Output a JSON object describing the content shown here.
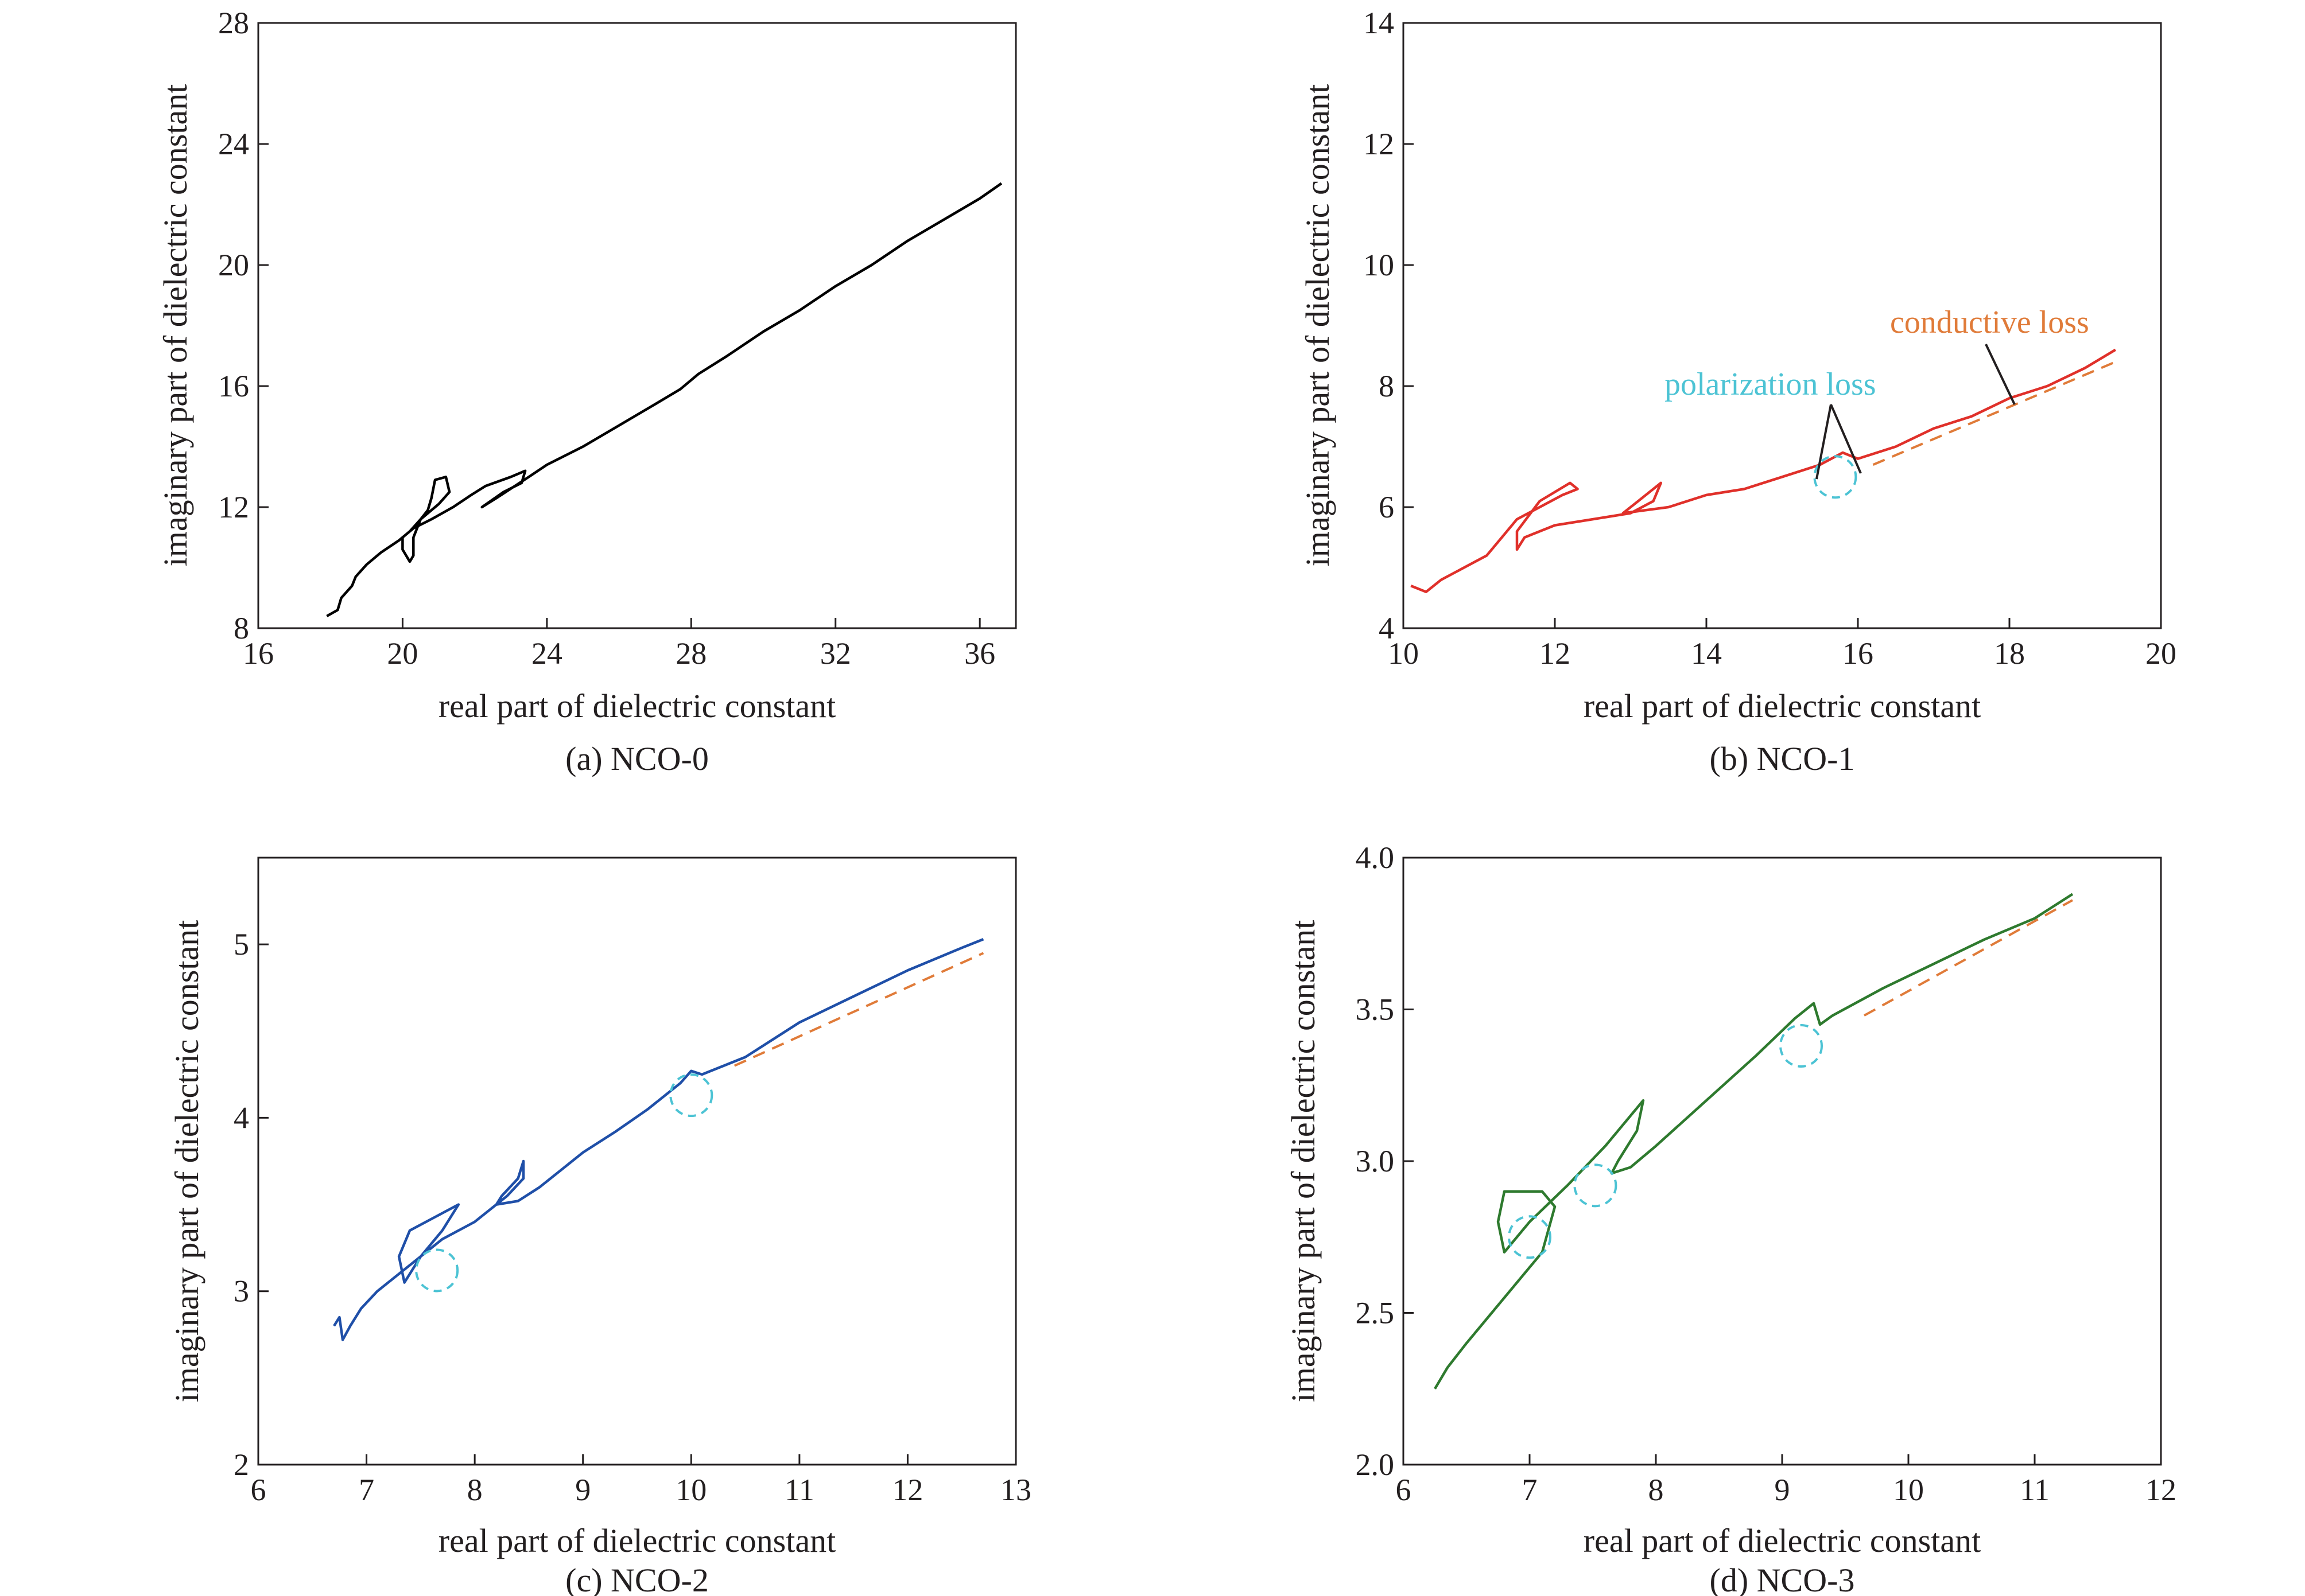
{
  "chart_data": [
    {
      "type": "line",
      "caption": "(a) NCO-0",
      "xlabel": "real part of dielectric constant",
      "ylabel": "imaginary part of dielectric constant",
      "xlim": [
        16,
        37
      ],
      "ylim": [
        8,
        28
      ],
      "xticks": [
        16,
        20,
        24,
        28,
        32,
        36
      ],
      "yticks": [
        8,
        12,
        16,
        20,
        24,
        28
      ],
      "grid": false,
      "series": [
        {
          "color": "#000000",
          "style": "solid",
          "points": [
            [
              17.9,
              8.4
            ],
            [
              18.2,
              8.6
            ],
            [
              18.3,
              9.0
            ],
            [
              18.6,
              9.4
            ],
            [
              18.7,
              9.7
            ],
            [
              19.0,
              10.1
            ],
            [
              19.4,
              10.5
            ],
            [
              19.9,
              10.9
            ],
            [
              20.2,
              11.2
            ],
            [
              20.5,
              11.6
            ],
            [
              20.7,
              11.9
            ],
            [
              20.8,
              12.3
            ],
            [
              20.9,
              12.9
            ],
            [
              21.2,
              13.0
            ],
            [
              21.3,
              12.5
            ],
            [
              21.0,
              12.1
            ],
            [
              20.5,
              11.6
            ],
            [
              20.3,
              11.0
            ],
            [
              20.3,
              10.4
            ],
            [
              20.2,
              10.2
            ],
            [
              20.0,
              10.6
            ],
            [
              20.0,
              11.0
            ],
            [
              20.3,
              11.3
            ],
            [
              20.8,
              11.6
            ],
            [
              21.4,
              12.0
            ],
            [
              21.9,
              12.4
            ],
            [
              22.3,
              12.7
            ],
            [
              23.0,
              13.0
            ],
            [
              23.4,
              13.2
            ],
            [
              23.3,
              12.8
            ],
            [
              22.8,
              12.5
            ],
            [
              22.2,
              12.0
            ],
            [
              22.6,
              12.3
            ],
            [
              23.5,
              13.0
            ],
            [
              24.0,
              13.4
            ],
            [
              25.0,
              14.0
            ],
            [
              26.0,
              14.7
            ],
            [
              27.0,
              15.4
            ],
            [
              27.7,
              15.9
            ],
            [
              28.2,
              16.4
            ],
            [
              29.0,
              17.0
            ],
            [
              30.0,
              17.8
            ],
            [
              31.0,
              18.5
            ],
            [
              32.0,
              19.3
            ],
            [
              33.0,
              20.0
            ],
            [
              34.0,
              20.8
            ],
            [
              35.0,
              21.5
            ],
            [
              36.0,
              22.2
            ],
            [
              36.6,
              22.7
            ]
          ]
        }
      ]
    },
    {
      "type": "line",
      "caption": "(b) NCO-1",
      "xlabel": "real part of dielectric constant",
      "ylabel": "imaginary part of dielectric constant",
      "xlim": [
        10,
        20
      ],
      "ylim": [
        4,
        14
      ],
      "xticks": [
        10,
        12,
        14,
        16,
        18,
        20
      ],
      "yticks": [
        4,
        6,
        8,
        10,
        12,
        14
      ],
      "grid": false,
      "series": [
        {
          "color": "#e0302a",
          "style": "solid",
          "points": [
            [
              10.1,
              4.7
            ],
            [
              10.3,
              4.6
            ],
            [
              10.5,
              4.8
            ],
            [
              10.8,
              5.0
            ],
            [
              11.1,
              5.2
            ],
            [
              11.3,
              5.5
            ],
            [
              11.5,
              5.8
            ],
            [
              11.8,
              6.0
            ],
            [
              12.1,
              6.2
            ],
            [
              12.3,
              6.3
            ],
            [
              12.2,
              6.4
            ],
            [
              11.8,
              6.1
            ],
            [
              11.5,
              5.6
            ],
            [
              11.5,
              5.3
            ],
            [
              11.6,
              5.5
            ],
            [
              12.0,
              5.7
            ],
            [
              12.5,
              5.8
            ],
            [
              13.0,
              5.9
            ],
            [
              13.3,
              6.1
            ],
            [
              13.4,
              6.4
            ],
            [
              13.1,
              6.1
            ],
            [
              12.9,
              5.9
            ],
            [
              13.5,
              6.0
            ],
            [
              14.0,
              6.2
            ],
            [
              14.5,
              6.3
            ],
            [
              15.0,
              6.5
            ],
            [
              15.5,
              6.7
            ],
            [
              15.8,
              6.9
            ],
            [
              16.0,
              6.8
            ],
            [
              16.5,
              7.0
            ],
            [
              17.0,
              7.3
            ],
            [
              17.5,
              7.5
            ],
            [
              18.0,
              7.8
            ],
            [
              18.5,
              8.0
            ],
            [
              19.0,
              8.3
            ],
            [
              19.4,
              8.6
            ]
          ]
        },
        {
          "color": "#e07b39",
          "style": "dashed",
          "points": [
            [
              16.2,
              6.7
            ],
            [
              19.4,
              8.4
            ]
          ]
        }
      ],
      "annotations": [
        {
          "text": "conductive loss",
          "color": "#e07b39"
        },
        {
          "text": "polarization loss",
          "color": "#4cc3d4"
        }
      ],
      "circles": [
        [
          15.7,
          6.5
        ]
      ]
    },
    {
      "type": "line",
      "caption": "(c) NCO-2",
      "xlabel": "real part of dielectric constant",
      "ylabel": "imaginary part of dielectric constant",
      "xlim": [
        6,
        13
      ],
      "ylim": [
        2,
        5.5
      ],
      "xticks": [
        6,
        7,
        8,
        9,
        10,
        11,
        12,
        13
      ],
      "yticks": [
        2,
        3,
        4,
        5
      ],
      "grid": false,
      "series": [
        {
          "color": "#1f4fa8",
          "style": "solid",
          "points": [
            [
              6.7,
              2.8
            ],
            [
              6.75,
              2.85
            ],
            [
              6.78,
              2.72
            ],
            [
              6.85,
              2.8
            ],
            [
              6.95,
              2.9
            ],
            [
              7.1,
              3.0
            ],
            [
              7.3,
              3.1
            ],
            [
              7.5,
              3.2
            ],
            [
              7.7,
              3.35
            ],
            [
              7.85,
              3.5
            ],
            [
              7.7,
              3.45
            ],
            [
              7.4,
              3.35
            ],
            [
              7.3,
              3.2
            ],
            [
              7.35,
              3.05
            ],
            [
              7.5,
              3.2
            ],
            [
              7.7,
              3.3
            ],
            [
              8.0,
              3.4
            ],
            [
              8.3,
              3.55
            ],
            [
              8.45,
              3.65
            ],
            [
              8.45,
              3.75
            ],
            [
              8.4,
              3.65
            ],
            [
              8.25,
              3.55
            ],
            [
              8.2,
              3.5
            ],
            [
              8.4,
              3.52
            ],
            [
              8.6,
              3.6
            ],
            [
              8.8,
              3.7
            ],
            [
              9.0,
              3.8
            ],
            [
              9.3,
              3.92
            ],
            [
              9.6,
              4.05
            ],
            [
              9.9,
              4.2
            ],
            [
              10.0,
              4.27
            ],
            [
              10.1,
              4.25
            ],
            [
              10.5,
              4.35
            ],
            [
              11.0,
              4.55
            ],
            [
              11.5,
              4.7
            ],
            [
              12.0,
              4.85
            ],
            [
              12.5,
              4.98
            ],
            [
              12.7,
              5.03
            ]
          ]
        },
        {
          "color": "#e07b39",
          "style": "dashed",
          "points": [
            [
              10.4,
              4.3
            ],
            [
              12.7,
              4.95
            ]
          ]
        }
      ],
      "circles": [
        [
          7.65,
          3.12
        ],
        [
          10.0,
          4.13
        ]
      ]
    },
    {
      "type": "line",
      "caption": "(d) NCO-3",
      "xlabel": "real part of dielectric constant",
      "ylabel": "imaginary part of dielectric constant",
      "xlim": [
        6,
        12
      ],
      "ylim": [
        2.0,
        4.0
      ],
      "xticks": [
        6,
        7,
        8,
        9,
        10,
        11,
        12
      ],
      "yticks": [
        2.0,
        2.5,
        3.0,
        3.5,
        4.0
      ],
      "grid": false,
      "series": [
        {
          "color": "#2e7a2e",
          "style": "solid",
          "points": [
            [
              6.25,
              2.25
            ],
            [
              6.35,
              2.32
            ],
            [
              6.5,
              2.4
            ],
            [
              6.7,
              2.5
            ],
            [
              6.9,
              2.6
            ],
            [
              7.1,
              2.7
            ],
            [
              7.2,
              2.85
            ],
            [
              7.1,
              2.9
            ],
            [
              6.8,
              2.9
            ],
            [
              6.75,
              2.8
            ],
            [
              6.8,
              2.7
            ],
            [
              7.0,
              2.8
            ],
            [
              7.3,
              2.92
            ],
            [
              7.6,
              3.05
            ],
            [
              7.8,
              3.15
            ],
            [
              7.9,
              3.2
            ],
            [
              7.85,
              3.1
            ],
            [
              7.7,
              3.0
            ],
            [
              7.65,
              2.96
            ],
            [
              7.8,
              2.98
            ],
            [
              8.0,
              3.05
            ],
            [
              8.4,
              3.2
            ],
            [
              8.8,
              3.35
            ],
            [
              9.1,
              3.47
            ],
            [
              9.25,
              3.52
            ],
            [
              9.3,
              3.45
            ],
            [
              9.4,
              3.48
            ],
            [
              9.8,
              3.57
            ],
            [
              10.2,
              3.65
            ],
            [
              10.6,
              3.73
            ],
            [
              11.0,
              3.8
            ],
            [
              11.3,
              3.88
            ]
          ]
        },
        {
          "color": "#e07b39",
          "style": "dashed",
          "points": [
            [
              9.65,
              3.48
            ],
            [
              11.3,
              3.86
            ]
          ]
        }
      ],
      "circles": [
        [
          7.0,
          2.75
        ],
        [
          7.52,
          2.92
        ],
        [
          9.15,
          3.38
        ]
      ]
    }
  ]
}
